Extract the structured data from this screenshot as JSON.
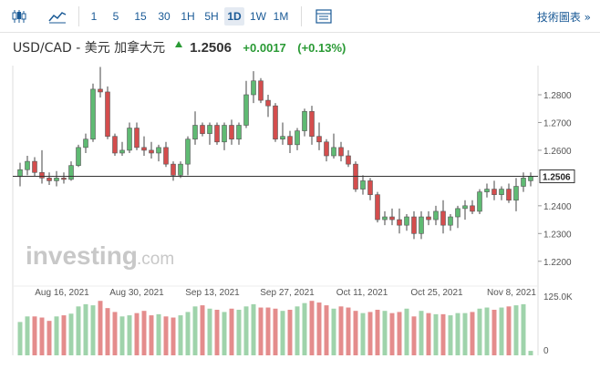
{
  "toolbar": {
    "candle_icon": "candlestick-chart-icon",
    "area_icon": "area-chart-icon",
    "intervals": [
      "1",
      "5",
      "15",
      "30",
      "1H",
      "5H",
      "1D",
      "1W",
      "1M"
    ],
    "active_interval": "1D",
    "table_icon": "data-table-icon",
    "tech_chart_label": "技術圖表 »"
  },
  "header": {
    "instrument": "USD/CAD - 美元 加拿大元",
    "price": "1.2506",
    "change": "+0.0017",
    "change_pct": "(+0.13%)"
  },
  "colors": {
    "up": "#5fba73",
    "down": "#d44d4d",
    "up_vol": "#9fd3ab",
    "down_vol": "#e48c8c",
    "accent": "#2a9a35"
  },
  "watermark": {
    "brand": "investing",
    "suffix": ".com"
  },
  "chart_data": {
    "type": "candlestick",
    "x_ticks": [
      "Aug 16, 2021",
      "Aug 30, 2021",
      "Sep 13, 2021",
      "Sep 27, 2021",
      "Oct 11, 2021",
      "Oct 25, 2021",
      "Nov 8, 2021"
    ],
    "y_ticks": [
      "1.2800",
      "1.2700",
      "1.2600",
      "1.2400",
      "1.2300",
      "1.2200"
    ],
    "ylim": [
      1.215,
      1.2905
    ],
    "last_price_label": "1.2506",
    "volume_ticks": [
      "125.0K",
      "0"
    ],
    "candles": [
      [
        1.2505,
        1.2555,
        1.247,
        1.253
      ],
      [
        1.253,
        1.258,
        1.251,
        1.256
      ],
      [
        1.256,
        1.2575,
        1.2505,
        1.252
      ],
      [
        1.252,
        1.26,
        1.248,
        1.25
      ],
      [
        1.25,
        1.252,
        1.2475,
        1.249
      ],
      [
        1.249,
        1.2525,
        1.247,
        1.25
      ],
      [
        1.25,
        1.252,
        1.248,
        1.2495
      ],
      [
        1.2495,
        1.256,
        1.249,
        1.2545
      ],
      [
        1.2545,
        1.262,
        1.254,
        1.261
      ],
      [
        1.261,
        1.266,
        1.259,
        1.264
      ],
      [
        1.264,
        1.284,
        1.263,
        1.282
      ],
      [
        1.282,
        1.29,
        1.279,
        1.281
      ],
      [
        1.281,
        1.283,
        1.264,
        1.265
      ],
      [
        1.265,
        1.266,
        1.258,
        1.259
      ],
      [
        1.259,
        1.263,
        1.258,
        1.26
      ],
      [
        1.26,
        1.27,
        1.259,
        1.268
      ],
      [
        1.268,
        1.27,
        1.26,
        1.261
      ],
      [
        1.261,
        1.265,
        1.258,
        1.26
      ],
      [
        1.26,
        1.263,
        1.257,
        1.259
      ],
      [
        1.259,
        1.262,
        1.256,
        1.261
      ],
      [
        1.261,
        1.263,
        1.254,
        1.255
      ],
      [
        1.255,
        1.256,
        1.249,
        1.251
      ],
      [
        1.251,
        1.256,
        1.25,
        1.255
      ],
      [
        1.255,
        1.265,
        1.251,
        1.264
      ],
      [
        1.264,
        1.274,
        1.262,
        1.269
      ],
      [
        1.269,
        1.27,
        1.265,
        1.266
      ],
      [
        1.266,
        1.27,
        1.262,
        1.269
      ],
      [
        1.269,
        1.27,
        1.262,
        1.263
      ],
      [
        1.263,
        1.27,
        1.26,
        1.269
      ],
      [
        1.269,
        1.271,
        1.262,
        1.264
      ],
      [
        1.264,
        1.27,
        1.262,
        1.269
      ],
      [
        1.269,
        1.285,
        1.268,
        1.28
      ],
      [
        1.28,
        1.2885,
        1.277,
        1.285
      ],
      [
        1.285,
        1.286,
        1.277,
        1.278
      ],
      [
        1.278,
        1.28,
        1.272,
        1.276
      ],
      [
        1.276,
        1.277,
        1.263,
        1.264
      ],
      [
        1.264,
        1.27,
        1.262,
        1.265
      ],
      [
        1.265,
        1.267,
        1.259,
        1.262
      ],
      [
        1.262,
        1.268,
        1.26,
        1.267
      ],
      [
        1.267,
        1.275,
        1.265,
        1.274
      ],
      [
        1.274,
        1.276,
        1.262,
        1.265
      ],
      [
        1.265,
        1.27,
        1.26,
        1.263
      ],
      [
        1.263,
        1.264,
        1.256,
        1.258
      ],
      [
        1.258,
        1.266,
        1.257,
        1.261
      ],
      [
        1.261,
        1.263,
        1.256,
        1.258
      ],
      [
        1.258,
        1.26,
        1.254,
        1.255
      ],
      [
        1.255,
        1.256,
        1.245,
        1.246
      ],
      [
        1.246,
        1.251,
        1.244,
        1.249
      ],
      [
        1.249,
        1.25,
        1.242,
        1.244
      ],
      [
        1.244,
        1.245,
        1.234,
        1.235
      ],
      [
        1.235,
        1.238,
        1.233,
        1.236
      ],
      [
        1.236,
        1.239,
        1.233,
        1.235
      ],
      [
        1.235,
        1.239,
        1.23,
        1.233
      ],
      [
        1.233,
        1.237,
        1.231,
        1.236
      ],
      [
        1.236,
        1.238,
        1.228,
        1.23
      ],
      [
        1.23,
        1.238,
        1.228,
        1.236
      ],
      [
        1.236,
        1.238,
        1.233,
        1.235
      ],
      [
        1.235,
        1.24,
        1.233,
        1.238
      ],
      [
        1.238,
        1.242,
        1.23,
        1.233
      ],
      [
        1.233,
        1.237,
        1.231,
        1.236
      ],
      [
        1.236,
        1.24,
        1.232,
        1.239
      ],
      [
        1.239,
        1.242,
        1.235,
        1.24
      ],
      [
        1.24,
        1.242,
        1.237,
        1.238
      ],
      [
        1.238,
        1.246,
        1.237,
        1.245
      ],
      [
        1.245,
        1.248,
        1.243,
        1.246
      ],
      [
        1.246,
        1.249,
        1.242,
        1.244
      ],
      [
        1.244,
        1.247,
        1.242,
        1.246
      ],
      [
        1.246,
        1.248,
        1.241,
        1.242
      ],
      [
        1.242,
        1.25,
        1.238,
        1.247
      ],
      [
        1.247,
        1.252,
        1.245,
        1.25
      ],
      [
        1.249,
        1.252,
        1.247,
        1.2506
      ]
    ],
    "volumes": [
      60,
      70,
      70,
      68,
      62,
      70,
      72,
      75,
      88,
      92,
      90,
      98,
      85,
      78,
      70,
      72,
      76,
      80,
      72,
      74,
      70,
      68,
      72,
      78,
      88,
      90,
      84,
      82,
      78,
      84,
      82,
      88,
      92,
      86,
      86,
      84,
      80,
      82,
      88,
      94,
      98,
      95,
      90,
      84,
      88,
      86,
      80,
      76,
      78,
      82,
      80,
      76,
      78,
      84,
      70,
      80,
      76,
      74,
      74,
      72,
      76,
      76,
      78,
      84,
      86,
      82,
      86,
      88,
      90,
      92,
      8
    ]
  }
}
